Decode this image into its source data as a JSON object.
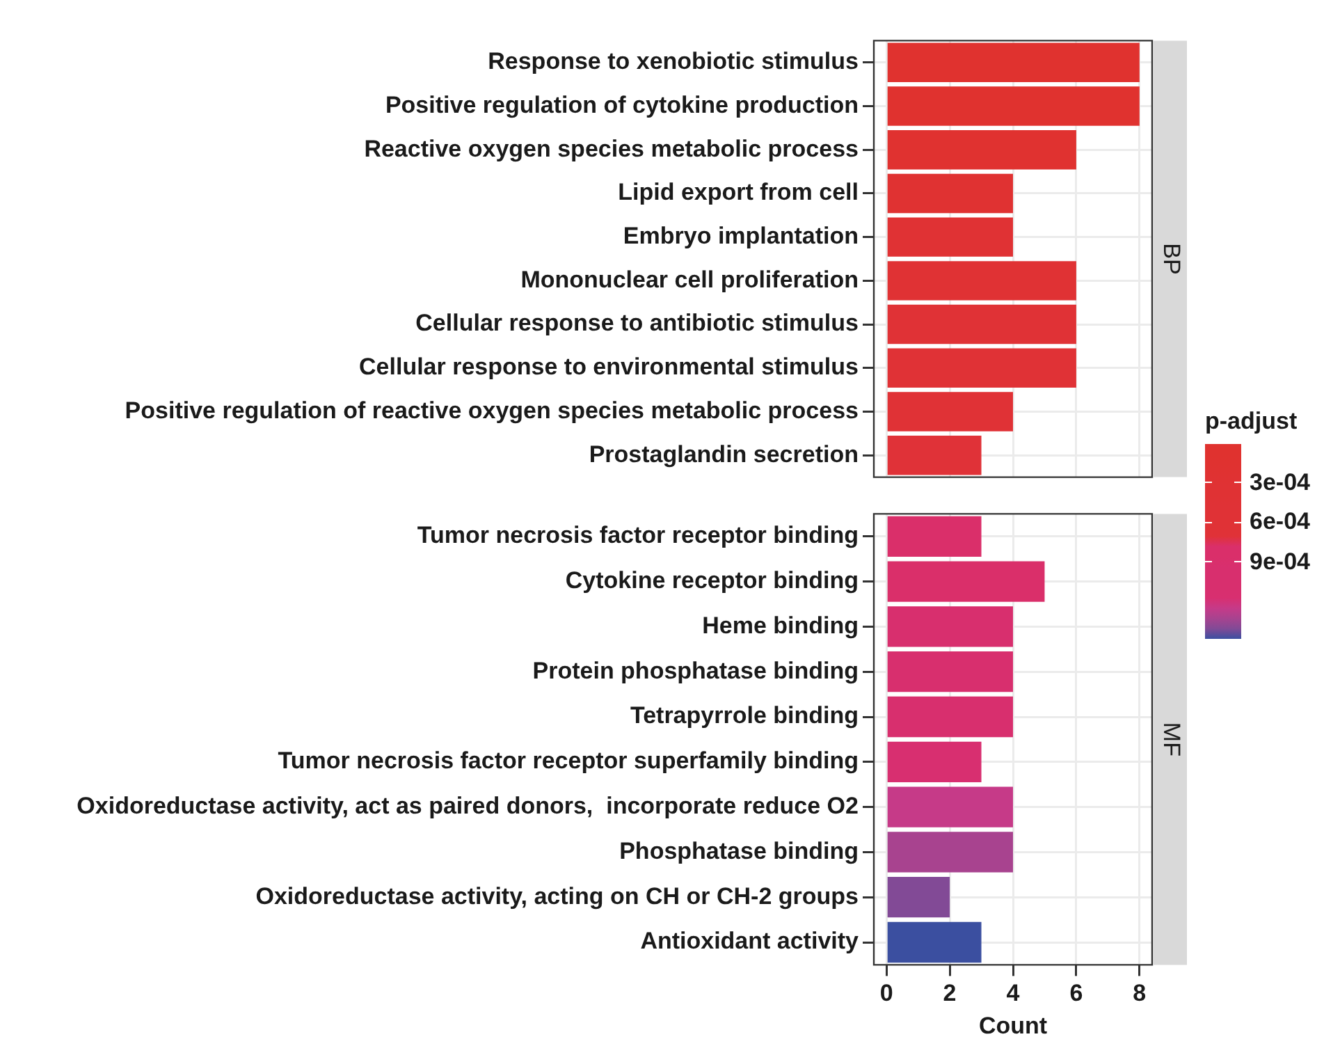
{
  "chart_data": [
    {
      "type": "bar",
      "orientation": "horizontal",
      "title": "BP",
      "categories": [
        "Response to xenobiotic stimulus",
        "Positive regulation of cytokine production",
        "Reactive oxygen species metabolic process",
        "Lipid export from cell",
        "Embryo implantation",
        "Mononuclear cell proliferation",
        "Cellular response to antibiotic stimulus",
        "Cellular response to environmental stimulus",
        "Positive regulation of reactive oxygen species metabolic process",
        "Prostaglandin secretion"
      ],
      "values": [
        8,
        8,
        6,
        4,
        4,
        6,
        6,
        6,
        4,
        3
      ],
      "colors": [
        "#e0322f",
        "#e0322f",
        "#e03230",
        "#e03232",
        "#e03234",
        "#e03234",
        "#e03236",
        "#e03236",
        "#e03236",
        "#e03238"
      ],
      "xlim": [
        -0.4,
        8.4
      ],
      "xticks": [
        0,
        2,
        4,
        6,
        8
      ],
      "grid": true,
      "tick_labels": "y",
      "clabel": "p-adjust",
      "clim": [
        1e-05,
        0.00148
      ],
      "cticks": [
        {
          "value": 0.0003,
          "label": "3e-04"
        },
        {
          "value": 0.0006,
          "label": "6e-04"
        },
        {
          "value": 0.0009,
          "label": "9e-04"
        }
      ]
    },
    {
      "type": "bar",
      "orientation": "horizontal",
      "title": "MF",
      "categories": [
        "Tumor necrosis factor receptor binding",
        "Cytokine receptor binding",
        "Heme binding",
        "Protein phosphatase binding",
        "Tetrapyrrole binding",
        "Tumor necrosis factor receptor superfamily binding",
        "Oxidoreductase activity, act as paired donors,  incorporate reduce O2",
        "Phosphatase binding",
        "Oxidoreductase activity, acting on CH or CH-2 groups",
        "Antioxidant activity"
      ],
      "values": [
        3,
        5,
        4,
        4,
        4,
        3,
        4,
        4,
        2,
        3
      ],
      "colors": [
        "#da2f6a",
        "#da2f6a",
        "#d82f6e",
        "#d82f6e",
        "#d82f6e",
        "#d82f70",
        "#c63a88",
        "#a8438f",
        "#824a96",
        "#3b4fa0"
      ],
      "xlim": [
        -0.4,
        8.4
      ],
      "xticks": [
        0,
        2,
        4,
        6,
        8
      ],
      "grid": true,
      "xlabel": "Count"
    }
  ]
}
